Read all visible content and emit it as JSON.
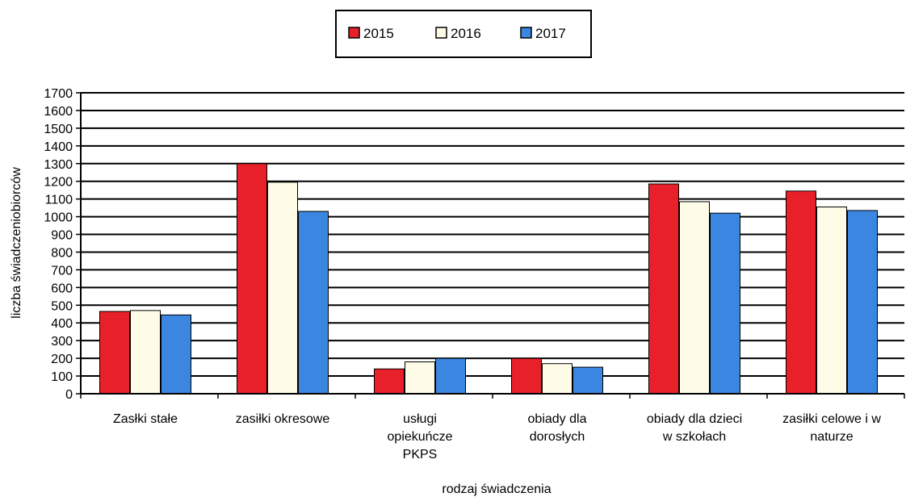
{
  "chart_data": {
    "type": "bar",
    "title": "",
    "xlabel": "rodzaj świadczenia",
    "ylabel": "liczba świadczeniobiorców",
    "ylim": [
      0,
      1700
    ],
    "yticks": [
      0,
      100,
      200,
      300,
      400,
      500,
      600,
      700,
      800,
      900,
      1000,
      1100,
      1200,
      1300,
      1400,
      1500,
      1600,
      1700
    ],
    "grid": true,
    "legend_position": "top-center",
    "categories": [
      [
        "Zasłki stałe"
      ],
      [
        "zasiłki okresowe"
      ],
      [
        "usługi",
        "opiekuńcze",
        "PKPS"
      ],
      [
        "obiady dla",
        "dorosłych"
      ],
      [
        "obiady dla dzieci",
        "w szkołach"
      ],
      [
        "zasiłki celowe i w",
        "naturze"
      ]
    ],
    "series": [
      {
        "name": "2015",
        "color": "#e8202a",
        "values": [
          465,
          1300,
          140,
          200,
          1185,
          1145
        ]
      },
      {
        "name": "2016",
        "color": "#fefbe6",
        "values": [
          470,
          1195,
          180,
          170,
          1085,
          1055
        ]
      },
      {
        "name": "2017",
        "color": "#3a86e0",
        "values": [
          445,
          1030,
          200,
          150,
          1020,
          1035
        ]
      }
    ]
  }
}
